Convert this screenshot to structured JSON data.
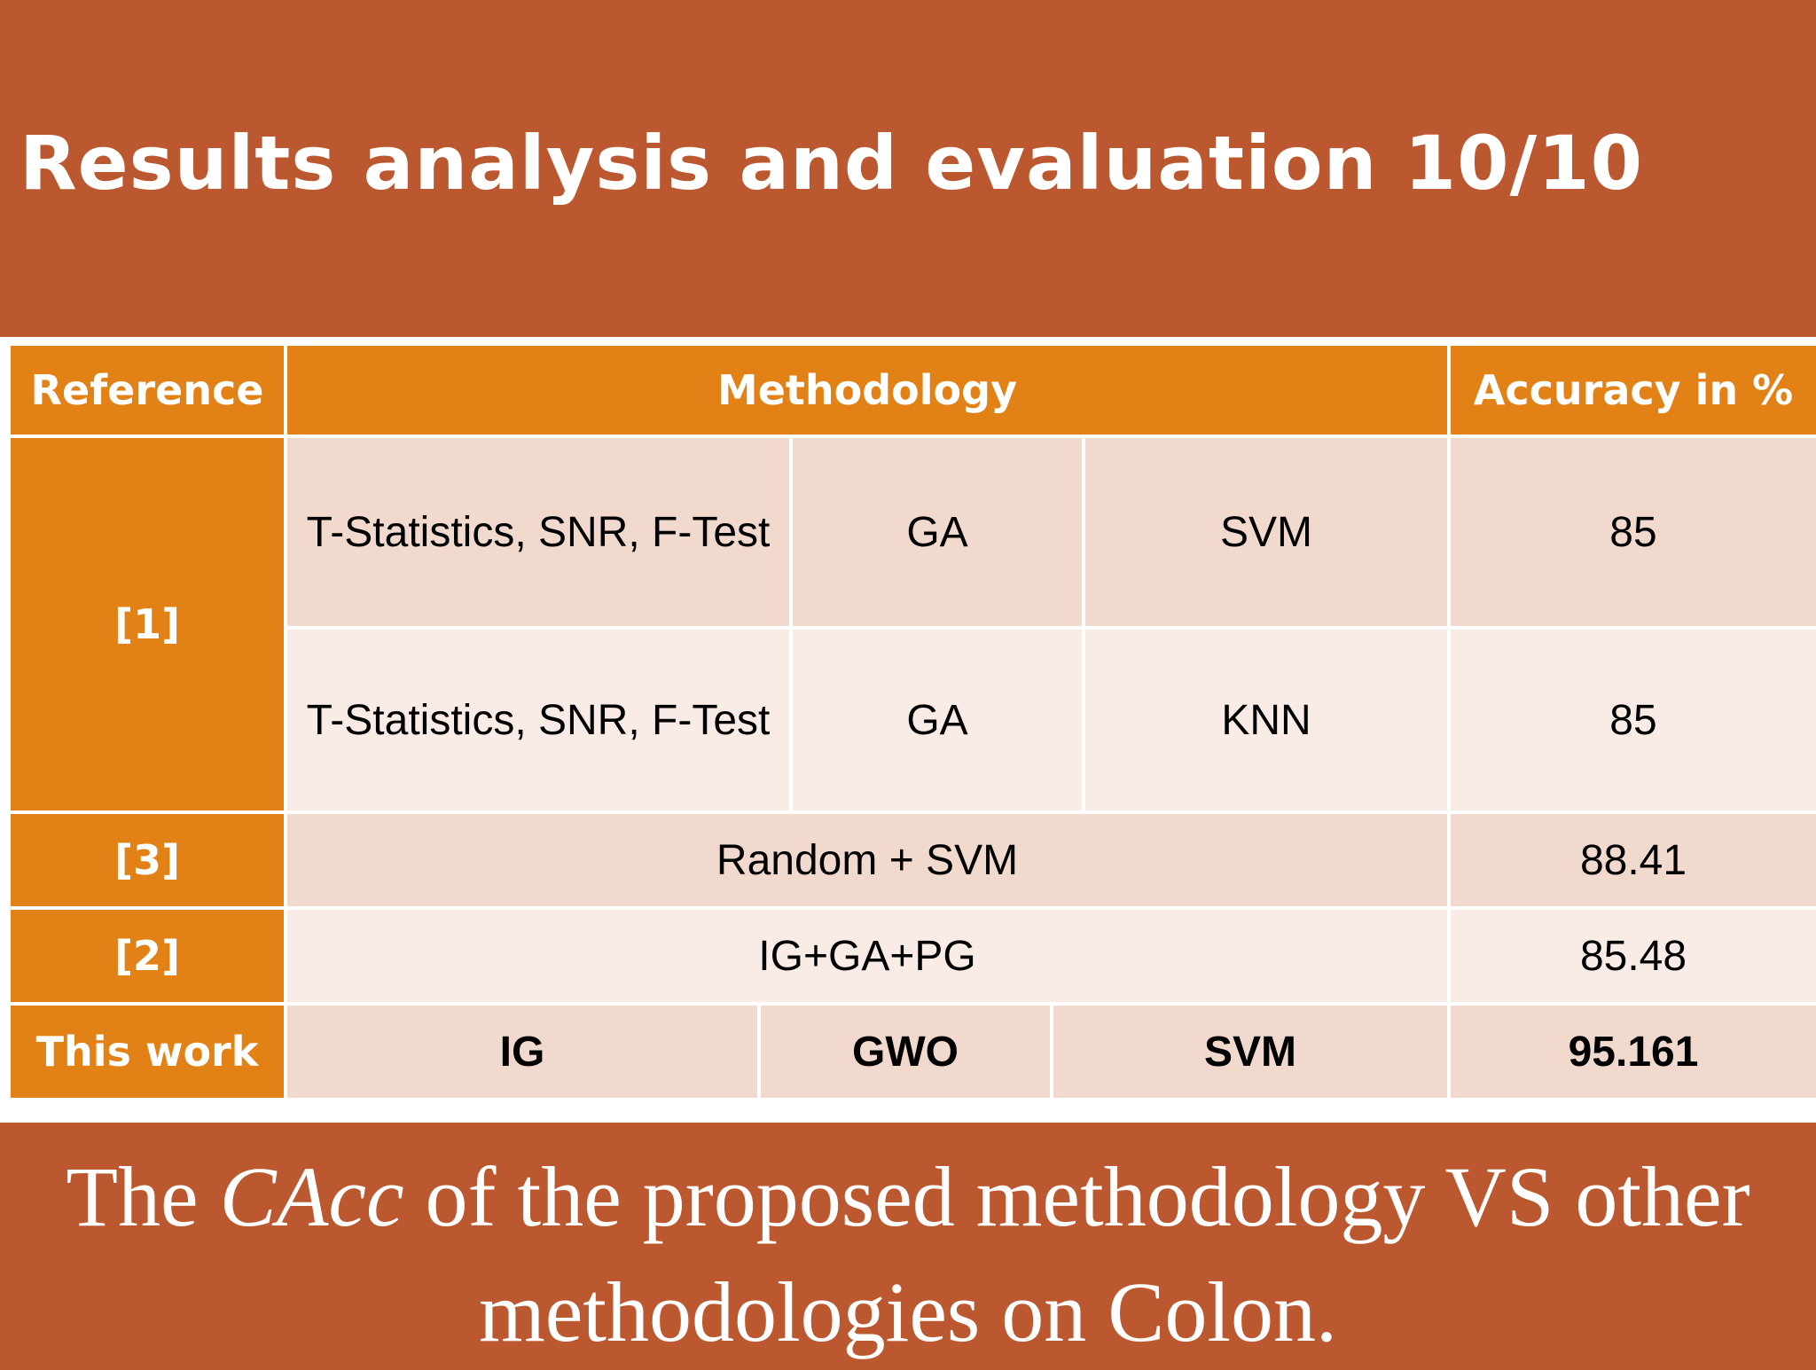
{
  "slide": {
    "title": "Results analysis and evaluation 10/10"
  },
  "table": {
    "headers": {
      "reference": "Reference",
      "methodology": "Methodology",
      "accuracy": "Accuracy in %"
    },
    "rows": [
      {
        "reference": "[1]",
        "method_a": "T-Statistics, SNR, F-Test",
        "method_b": "GA",
        "method_c": "SVM",
        "accuracy": "85"
      },
      {
        "reference": "[1]",
        "method_a": "T-Statistics, SNR, F-Test",
        "method_b": "GA",
        "method_c": "KNN",
        "accuracy": "85"
      },
      {
        "reference": "[3]",
        "method": "Random + SVM",
        "accuracy": "88.41"
      },
      {
        "reference": "[2]",
        "method": "IG+GA+PG",
        "accuracy": "85.48"
      },
      {
        "reference": "This work",
        "method_a": "IG",
        "method_b": "GWO",
        "method_c": "SVM",
        "accuracy": "95.161"
      }
    ]
  },
  "caption": {
    "part1": "The ",
    "emphasis": "CAcc",
    "part2": " of the proposed methodology VS other methodologies on Colon."
  },
  "colors": {
    "background": "#bc582f",
    "header_orange": "#e28116",
    "row_dark": "#f2d9cd",
    "row_light": "#f9ebe6"
  }
}
